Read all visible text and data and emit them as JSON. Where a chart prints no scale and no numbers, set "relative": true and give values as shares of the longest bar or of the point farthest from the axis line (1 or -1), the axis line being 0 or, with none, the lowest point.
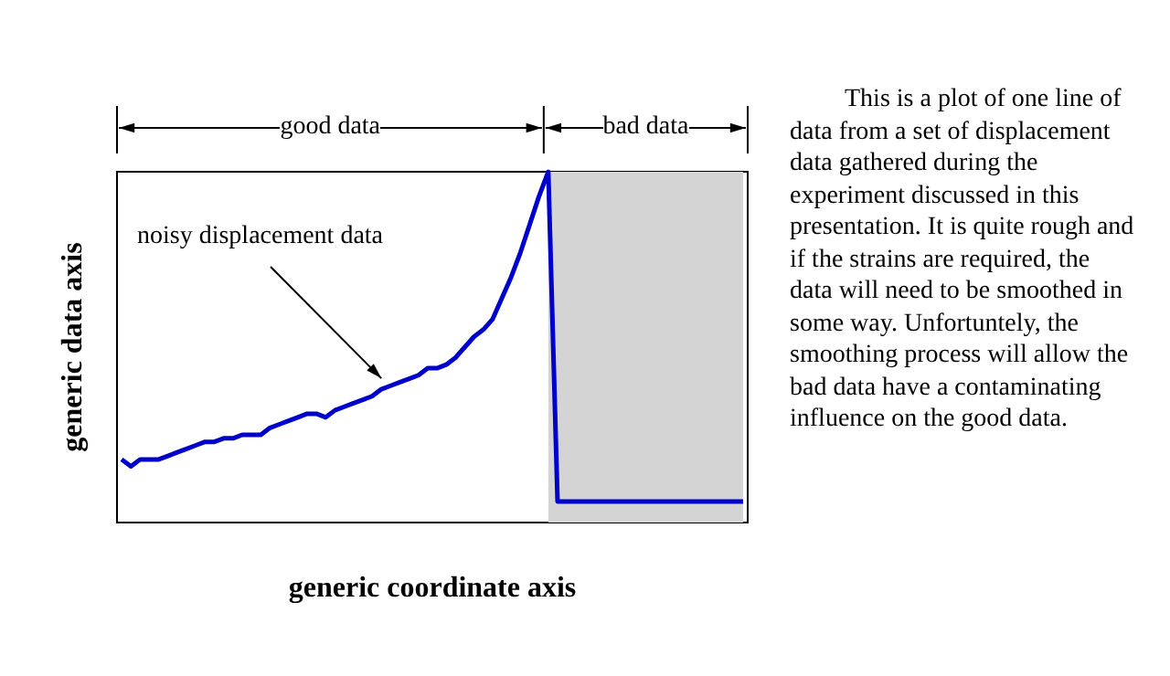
{
  "chart_data": {
    "type": "line",
    "relative": true,
    "xlabel": "generic coordinate axis",
    "ylabel": "generic data axis",
    "categories": [
      null,
      null,
      null,
      null,
      null,
      null,
      null,
      null,
      null,
      null,
      null,
      null,
      null,
      null,
      null,
      null,
      null,
      null,
      null,
      null,
      null,
      null,
      null,
      null,
      null,
      null,
      null,
      null,
      null,
      null,
      null,
      null,
      null,
      null,
      null,
      null,
      null,
      null,
      null,
      null,
      null,
      null,
      null,
      null,
      null,
      null,
      null,
      null,
      null,
      null,
      null,
      null,
      null,
      null,
      null,
      null,
      null,
      null,
      null,
      null,
      null,
      null,
      null,
      null,
      null,
      null,
      null,
      null
    ],
    "series": [
      {
        "color": "#0000cc",
        "values": [
          0.18,
          0.16,
          0.18,
          0.18,
          0.18,
          0.19,
          0.2,
          0.21,
          0.22,
          0.23,
          0.23,
          0.24,
          0.24,
          0.25,
          0.25,
          0.25,
          0.27,
          0.28,
          0.29,
          0.3,
          0.31,
          0.31,
          0.3,
          0.32,
          0.33,
          0.34,
          0.35,
          0.36,
          0.38,
          0.39,
          0.4,
          0.41,
          0.42,
          0.44,
          0.44,
          0.45,
          0.47,
          0.5,
          0.53,
          0.55,
          0.58,
          0.64,
          0.7,
          0.77,
          0.85,
          0.93,
          1,
          0.06,
          0.06,
          0.06,
          0.06,
          0.06,
          0.06,
          0.06,
          0.06,
          0.06,
          0.06,
          0.06,
          0.06,
          0.06,
          0.06,
          0.06,
          0.06,
          0.06,
          0.06,
          0.06,
          0.06,
          0.06
        ]
      }
    ],
    "annotations": [
      "good data",
      "bad data",
      "noisy displacement data",
      "This is a plot of one line of data from a set of displacement data gathered during the experiment discussed in this presentation.  It is quite rough and if the strains are required, the data will need to be smoothed in some way.  Unfortuntely, the smoothing process will allow the bad data have a contaminating influence on the good data."
    ],
    "line_style": "solid"
  }
}
